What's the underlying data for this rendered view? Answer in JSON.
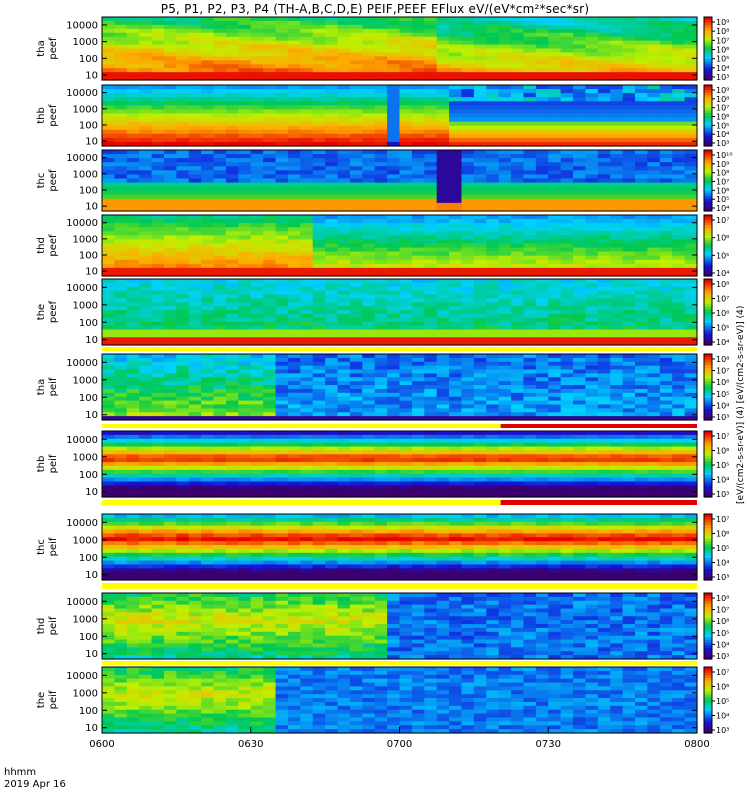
{
  "title": "P5, P1, P2, P3, P4 (TH-A,B,C,D,E) PEIF,PEEF EFlux eV/(eV*cm²*sec*sr)",
  "footer": {
    "time_label": "hhmm",
    "date_label": "2019 Apr 16"
  },
  "colorbar_unit": "[eV/(cm2-s-sr-eV)] (4) [eV/(cm2-s-sr-eV)] (4)",
  "colors": {
    "frame": "#000000",
    "ribbon_yellow": "#ffff00",
    "ribbon_red": "#e00000"
  },
  "chart_data": {
    "type": "heatmap",
    "x_axis": {
      "ticks": [
        "0600",
        "0630",
        "0700",
        "0730",
        "0800"
      ],
      "range": [
        "06:00",
        "08:00"
      ]
    },
    "y_axis": {
      "scale": "log",
      "ticks": [
        "10",
        "100",
        "1000",
        "10000"
      ],
      "range": [
        5,
        30000
      ],
      "unit": "eV"
    },
    "panels": [
      {
        "label": [
          "tha",
          "peef"
        ],
        "colorbar": [
          "10⁹",
          "10⁸",
          "10⁷",
          "10⁶",
          "10⁵",
          "10⁴",
          "10³"
        ]
      },
      {
        "label": [
          "thb",
          "peef"
        ],
        "colorbar": [
          "10⁹",
          "10⁸",
          "10⁷",
          "10⁶",
          "10⁵",
          "10⁴",
          "10³"
        ]
      },
      {
        "label": [
          "thc",
          "peef"
        ],
        "colorbar": [
          "10¹⁰",
          "10⁹",
          "10⁸",
          "10⁷",
          "10⁶",
          "10⁵",
          "10⁴"
        ]
      },
      {
        "label": [
          "thd",
          "peef"
        ],
        "colorbar": [
          "10⁷",
          "10⁶",
          "10⁵",
          "10⁴"
        ]
      },
      {
        "label": [
          "the",
          "peef"
        ],
        "colorbar": [
          "10⁸",
          "10⁷",
          "10⁶",
          "10⁵",
          "10⁴"
        ]
      },
      {
        "label": [
          "tha",
          "peif"
        ],
        "colorbar": [
          "10⁸",
          "10⁷",
          "10⁶",
          "10⁵",
          "10⁴",
          "10³"
        ]
      },
      {
        "label": [
          "thb",
          "peif"
        ],
        "colorbar": [
          "10⁷",
          "10⁶",
          "10⁵",
          "10⁴",
          "10³"
        ]
      },
      {
        "label": [
          "thc",
          "peif"
        ],
        "colorbar": [
          "10⁷",
          "10⁶",
          "10⁵",
          "10⁴",
          "10³"
        ]
      },
      {
        "label": [
          "thd",
          "peif"
        ],
        "colorbar": [
          "10⁸",
          "10⁷",
          "10⁶",
          "10⁵",
          "10⁴",
          "10³"
        ]
      },
      {
        "label": [
          "the",
          "peif"
        ],
        "colorbar": [
          "10⁷",
          "10⁶",
          "10⁵",
          "10⁴",
          "10³"
        ]
      }
    ]
  }
}
